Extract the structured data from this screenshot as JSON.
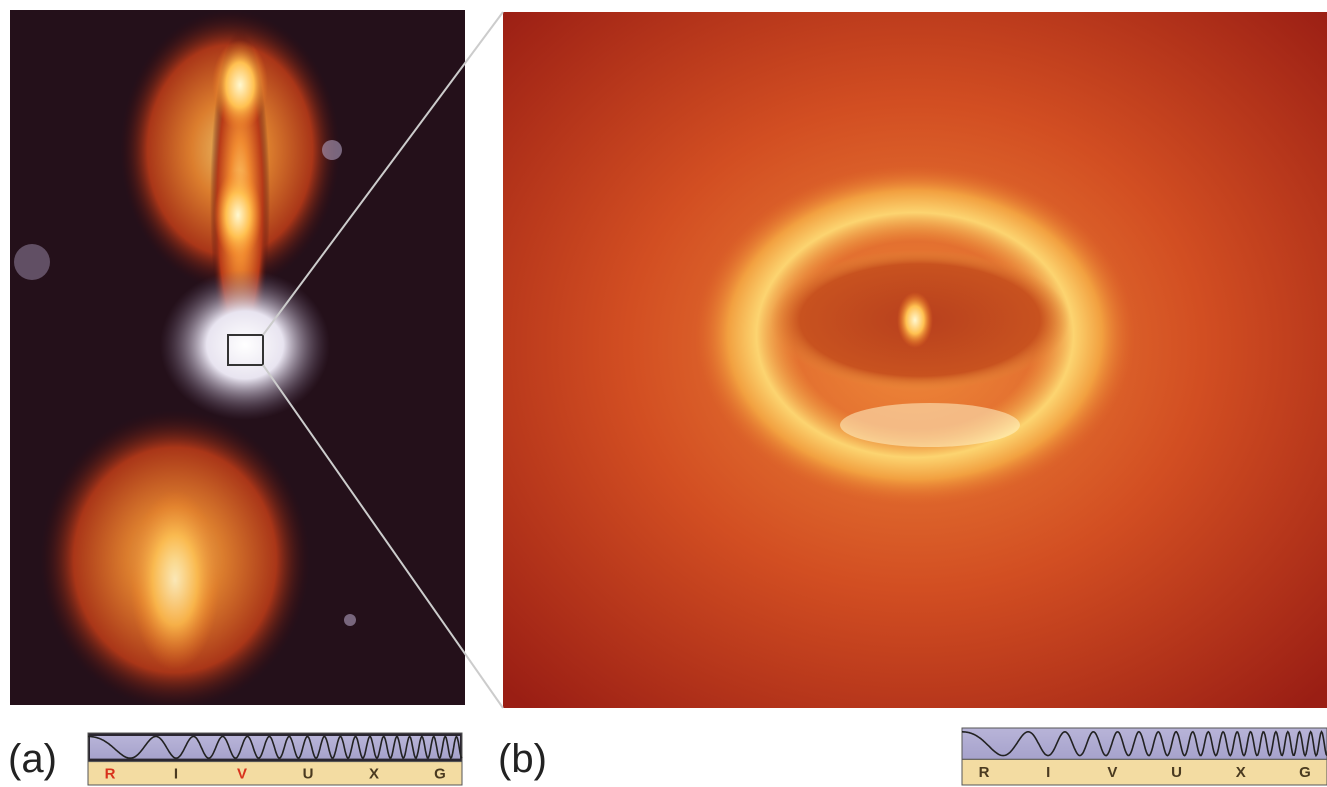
{
  "panels": [
    {
      "label": "(a)",
      "spectrum": [
        "R",
        "I",
        "V",
        "U",
        "X",
        "G"
      ]
    },
    {
      "label": "(b)",
      "spectrum": [
        "R",
        "I",
        "V",
        "U",
        "X",
        "G"
      ]
    }
  ]
}
